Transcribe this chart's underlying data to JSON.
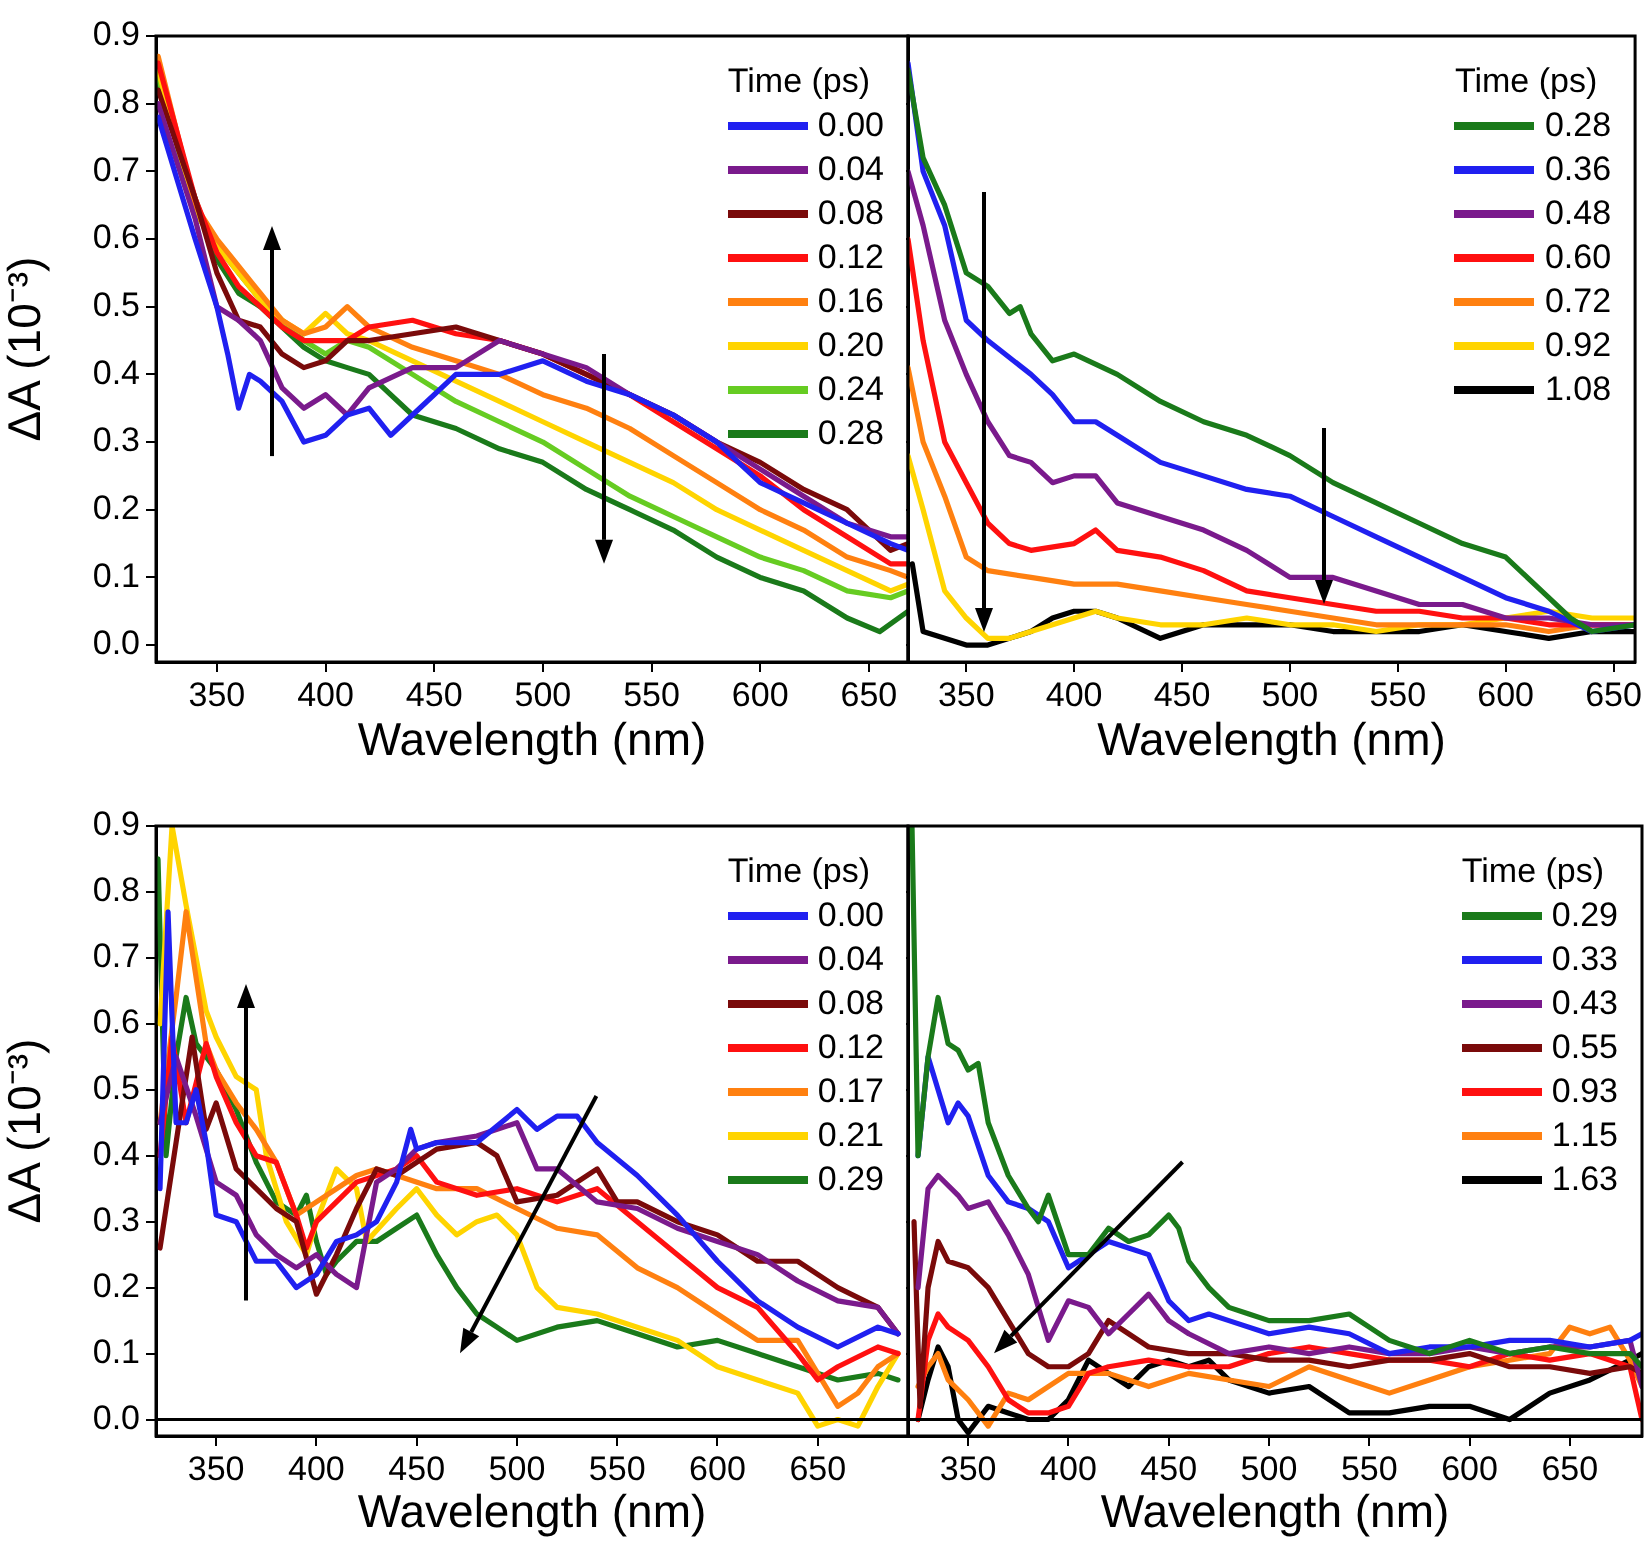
{
  "chart_data": [
    {
      "type": "line",
      "xlabel": "Wavelength (nm)",
      "ylabel": "ΔA (10⁻³)",
      "legend_title": "Time (ps)",
      "legend": "top right",
      "xlim": [
        322,
        668
      ],
      "ylim": [
        -0.025,
        0.9
      ],
      "xticks": [
        350,
        400,
        450,
        500,
        550,
        600,
        650
      ],
      "yticks": [
        {
          "value": 0,
          "label": "0.0"
        },
        0.1,
        0.2,
        0.3,
        0.4,
        0.5,
        0.6,
        0.7,
        0.8,
        0.9
      ],
      "series": [
        {
          "name": "0.00",
          "color": "#2020f0",
          "x": [
            323,
            340,
            350,
            355,
            360,
            365,
            370,
            380,
            390,
            400,
            410,
            420,
            430,
            440,
            460,
            480,
            500,
            520,
            540,
            560,
            580,
            600,
            620,
            640,
            660,
            668
          ],
          "values": [
            0.78,
            0.6,
            0.5,
            0.43,
            0.35,
            0.4,
            0.39,
            0.36,
            0.3,
            0.31,
            0.34,
            0.35,
            0.31,
            0.34,
            0.4,
            0.4,
            0.42,
            0.39,
            0.37,
            0.34,
            0.3,
            0.24,
            0.21,
            0.18,
            0.15,
            0.14
          ]
        },
        {
          "name": "0.04",
          "color": "#7a1a8c",
          "x": [
            323,
            340,
            350,
            360,
            370,
            380,
            390,
            400,
            410,
            420,
            440,
            460,
            480,
            500,
            520,
            540,
            560,
            580,
            600,
            620,
            640,
            660,
            668
          ],
          "values": [
            0.8,
            0.63,
            0.5,
            0.48,
            0.45,
            0.38,
            0.35,
            0.37,
            0.34,
            0.38,
            0.41,
            0.41,
            0.45,
            0.43,
            0.41,
            0.37,
            0.34,
            0.3,
            0.26,
            0.22,
            0.18,
            0.16,
            0.16
          ]
        },
        {
          "name": "0.08",
          "color": "#7a0a0a",
          "x": [
            323,
            340,
            350,
            360,
            370,
            380,
            390,
            400,
            410,
            420,
            440,
            460,
            480,
            500,
            520,
            540,
            560,
            580,
            600,
            620,
            640,
            660,
            668
          ],
          "values": [
            0.82,
            0.66,
            0.55,
            0.48,
            0.47,
            0.43,
            0.41,
            0.42,
            0.45,
            0.45,
            0.46,
            0.47,
            0.45,
            0.43,
            0.4,
            0.37,
            0.34,
            0.3,
            0.27,
            0.23,
            0.2,
            0.14,
            0.15
          ]
        },
        {
          "name": "0.12",
          "color": "#ff1010",
          "x": [
            323,
            340,
            350,
            360,
            370,
            380,
            390,
            400,
            410,
            420,
            440,
            460,
            480,
            500,
            520,
            540,
            560,
            580,
            600,
            620,
            640,
            660,
            668
          ],
          "values": [
            0.86,
            0.66,
            0.58,
            0.53,
            0.5,
            0.47,
            0.45,
            0.45,
            0.45,
            0.47,
            0.48,
            0.46,
            0.45,
            0.43,
            0.4,
            0.37,
            0.33,
            0.29,
            0.25,
            0.2,
            0.16,
            0.12,
            0.12
          ]
        },
        {
          "name": "0.16",
          "color": "#ff8010",
          "x": [
            323,
            340,
            350,
            360,
            370,
            380,
            390,
            400,
            410,
            420,
            440,
            460,
            480,
            500,
            520,
            540,
            560,
            580,
            600,
            620,
            640,
            660,
            668
          ],
          "values": [
            0.87,
            0.65,
            0.6,
            0.56,
            0.52,
            0.48,
            0.46,
            0.47,
            0.5,
            0.47,
            0.44,
            0.42,
            0.4,
            0.37,
            0.35,
            0.32,
            0.28,
            0.24,
            0.2,
            0.17,
            0.13,
            0.11,
            0.1
          ]
        },
        {
          "name": "0.20",
          "color": "#ffd400",
          "x": [
            323,
            340,
            350,
            360,
            370,
            380,
            390,
            400,
            410,
            420,
            440,
            460,
            480,
            500,
            520,
            540,
            560,
            580,
            600,
            620,
            640,
            660,
            668
          ],
          "values": [
            0.85,
            0.64,
            0.59,
            0.55,
            0.51,
            0.48,
            0.46,
            0.49,
            0.46,
            0.45,
            0.42,
            0.39,
            0.36,
            0.33,
            0.3,
            0.27,
            0.24,
            0.2,
            0.17,
            0.14,
            0.11,
            0.08,
            0.09
          ]
        },
        {
          "name": "0.24",
          "color": "#66cc22",
          "x": [
            323,
            340,
            350,
            360,
            370,
            380,
            390,
            400,
            410,
            420,
            440,
            460,
            480,
            500,
            520,
            540,
            560,
            580,
            600,
            620,
            640,
            660,
            668
          ],
          "values": [
            0.84,
            0.64,
            0.59,
            0.55,
            0.51,
            0.48,
            0.45,
            0.43,
            0.45,
            0.44,
            0.4,
            0.36,
            0.33,
            0.3,
            0.26,
            0.22,
            0.19,
            0.16,
            0.13,
            0.11,
            0.08,
            0.07,
            0.08
          ]
        },
        {
          "name": "0.28",
          "color": "#1a7a1a",
          "x": [
            323,
            340,
            350,
            360,
            370,
            380,
            390,
            400,
            410,
            420,
            440,
            460,
            480,
            500,
            520,
            540,
            560,
            580,
            600,
            620,
            640,
            655,
            668
          ],
          "values": [
            0.83,
            0.66,
            0.57,
            0.52,
            0.5,
            0.47,
            0.44,
            0.42,
            0.41,
            0.4,
            0.34,
            0.32,
            0.29,
            0.27,
            0.23,
            0.2,
            0.17,
            0.13,
            0.1,
            0.08,
            0.04,
            0.02,
            0.05
          ]
        }
      ]
    },
    {
      "type": "line",
      "xlabel": "Wavelength (nm)",
      "legend_title": "Time (ps)",
      "legend": "top right",
      "tick_labels": "x",
      "xlim": [
        323,
        660
      ],
      "ylim": [
        -0.025,
        0.9
      ],
      "xticks": [
        350,
        400,
        450,
        500,
        550,
        600,
        650
      ],
      "yticks": [
        0,
        0.1,
        0.2,
        0.3,
        0.4,
        0.5,
        0.6,
        0.7,
        0.8,
        0.9
      ],
      "series": [
        {
          "name": "0.28",
          "color": "#1a7a1a",
          "x": [
            323,
            330,
            340,
            350,
            360,
            370,
            375,
            380,
            390,
            400,
            420,
            440,
            460,
            480,
            500,
            520,
            540,
            560,
            580,
            600,
            620,
            630,
            640,
            660
          ],
          "values": [
            0.85,
            0.72,
            0.65,
            0.55,
            0.53,
            0.49,
            0.5,
            0.46,
            0.42,
            0.43,
            0.4,
            0.36,
            0.33,
            0.31,
            0.28,
            0.24,
            0.21,
            0.18,
            0.15,
            0.13,
            0.07,
            0.04,
            0.02,
            0.03
          ]
        },
        {
          "name": "0.36",
          "color": "#2020f0",
          "x": [
            323,
            330,
            340,
            350,
            360,
            380,
            390,
            400,
            410,
            420,
            440,
            460,
            480,
            500,
            520,
            540,
            560,
            580,
            600,
            620,
            640,
            660
          ],
          "values": [
            0.86,
            0.7,
            0.62,
            0.48,
            0.45,
            0.4,
            0.37,
            0.33,
            0.33,
            0.31,
            0.27,
            0.25,
            0.23,
            0.22,
            0.19,
            0.16,
            0.13,
            0.1,
            0.07,
            0.05,
            0.02,
            0.03
          ]
        },
        {
          "name": "0.48",
          "color": "#7a1a8c",
          "x": [
            323,
            330,
            340,
            350,
            360,
            370,
            380,
            390,
            400,
            410,
            420,
            440,
            460,
            480,
            500,
            520,
            540,
            560,
            580,
            600,
            620,
            640,
            660
          ],
          "values": [
            0.7,
            0.62,
            0.48,
            0.4,
            0.33,
            0.28,
            0.27,
            0.24,
            0.25,
            0.25,
            0.21,
            0.19,
            0.17,
            0.14,
            0.1,
            0.1,
            0.08,
            0.06,
            0.06,
            0.04,
            0.04,
            0.03,
            0.03
          ]
        },
        {
          "name": "0.60",
          "color": "#ff1010",
          "x": [
            323,
            330,
            340,
            350,
            360,
            370,
            380,
            400,
            410,
            420,
            440,
            460,
            480,
            500,
            520,
            540,
            560,
            580,
            600,
            620,
            640,
            660
          ],
          "values": [
            0.6,
            0.45,
            0.3,
            0.24,
            0.18,
            0.15,
            0.14,
            0.15,
            0.17,
            0.14,
            0.13,
            0.11,
            0.08,
            0.07,
            0.06,
            0.05,
            0.05,
            0.04,
            0.04,
            0.03,
            0.03,
            0.03
          ]
        },
        {
          "name": "0.72",
          "color": "#ff8010",
          "x": [
            323,
            330,
            340,
            350,
            360,
            380,
            400,
            420,
            440,
            460,
            480,
            500,
            520,
            540,
            560,
            580,
            600,
            620,
            640,
            660
          ],
          "values": [
            0.41,
            0.3,
            0.22,
            0.13,
            0.11,
            0.1,
            0.09,
            0.09,
            0.08,
            0.07,
            0.06,
            0.05,
            0.04,
            0.03,
            0.03,
            0.03,
            0.03,
            0.02,
            0.03,
            0.03
          ]
        },
        {
          "name": "0.92",
          "color": "#ffd400",
          "x": [
            323,
            330,
            340,
            350,
            360,
            370,
            380,
            400,
            410,
            420,
            440,
            460,
            480,
            500,
            520,
            540,
            560,
            580,
            600,
            620,
            640,
            660
          ],
          "values": [
            0.28,
            0.2,
            0.08,
            0.04,
            0.01,
            0.01,
            0.02,
            0.04,
            0.05,
            0.04,
            0.03,
            0.03,
            0.04,
            0.03,
            0.03,
            0.02,
            0.03,
            0.03,
            0.04,
            0.05,
            0.04,
            0.04
          ]
        },
        {
          "name": "1.08",
          "color": "#000000",
          "x": [
            325,
            330,
            340,
            350,
            360,
            380,
            390,
            400,
            410,
            420,
            440,
            460,
            480,
            500,
            520,
            540,
            560,
            580,
            600,
            620,
            640,
            660
          ],
          "values": [
            0.12,
            0.02,
            0.01,
            0,
            0,
            0.02,
            0.04,
            0.05,
            0.05,
            0.04,
            0.01,
            0.03,
            0.03,
            0.03,
            0.02,
            0.02,
            0.02,
            0.03,
            0.02,
            0.01,
            0.02,
            0.02
          ]
        }
      ]
    },
    {
      "type": "line",
      "xlabel": "Wavelength (nm)",
      "ylabel": "ΔA (10⁻³)",
      "legend_title": "Time (ps)",
      "legend": "top right",
      "xlim": [
        320,
        695
      ],
      "ylim": [
        -0.025,
        0.9
      ],
      "xticks": [
        350,
        400,
        450,
        500,
        550,
        600,
        650
      ],
      "yticks": [
        {
          "value": 0,
          "label": "0.0"
        },
        0.1,
        0.2,
        0.3,
        0.4,
        0.5,
        0.6,
        0.7,
        0.8,
        0.9
      ],
      "ref_lines": [
        {
          "axis": "y",
          "value": 0
        }
      ],
      "series": [
        {
          "name": "0.00",
          "color": "#2020f0",
          "x": [
            322,
            326,
            330,
            335,
            340,
            345,
            350,
            360,
            370,
            380,
            390,
            400,
            410,
            420,
            430,
            440,
            447,
            450,
            460,
            480,
            500,
            510,
            520,
            530,
            540,
            560,
            580,
            600,
            620,
            640,
            660,
            680,
            690
          ],
          "values": [
            0.35,
            0.77,
            0.45,
            0.45,
            0.5,
            0.42,
            0.31,
            0.3,
            0.24,
            0.24,
            0.2,
            0.22,
            0.27,
            0.28,
            0.3,
            0.36,
            0.44,
            0.41,
            0.42,
            0.42,
            0.47,
            0.44,
            0.46,
            0.46,
            0.42,
            0.37,
            0.31,
            0.24,
            0.18,
            0.14,
            0.11,
            0.14,
            0.13
          ]
        },
        {
          "name": "0.04",
          "color": "#7a1a8c",
          "x": [
            322,
            330,
            340,
            350,
            360,
            370,
            380,
            390,
            400,
            410,
            420,
            430,
            440,
            450,
            460,
            480,
            500,
            510,
            520,
            540,
            560,
            580,
            600,
            620,
            640,
            660,
            680,
            690
          ],
          "values": [
            0.45,
            0.55,
            0.46,
            0.36,
            0.34,
            0.28,
            0.25,
            0.23,
            0.25,
            0.22,
            0.2,
            0.36,
            0.38,
            0.41,
            0.42,
            0.43,
            0.45,
            0.38,
            0.38,
            0.33,
            0.32,
            0.29,
            0.27,
            0.25,
            0.21,
            0.18,
            0.17,
            0.13
          ]
        },
        {
          "name": "0.08",
          "color": "#7a0a0a",
          "x": [
            322,
            330,
            338,
            345,
            350,
            360,
            370,
            380,
            390,
            400,
            410,
            420,
            430,
            440,
            460,
            480,
            490,
            500,
            520,
            540,
            550,
            560,
            580,
            600,
            620,
            640,
            660,
            680,
            690
          ],
          "values": [
            0.26,
            0.42,
            0.58,
            0.44,
            0.48,
            0.38,
            0.35,
            0.32,
            0.3,
            0.19,
            0.25,
            0.32,
            0.38,
            0.37,
            0.41,
            0.42,
            0.4,
            0.33,
            0.34,
            0.38,
            0.33,
            0.33,
            0.3,
            0.28,
            0.24,
            0.24,
            0.2,
            0.17,
            0.13
          ]
        },
        {
          "name": "0.12",
          "color": "#ff1010",
          "x": [
            322,
            328,
            335,
            345,
            350,
            360,
            370,
            380,
            390,
            395,
            400,
            420,
            440,
            450,
            460,
            480,
            500,
            520,
            540,
            560,
            580,
            600,
            620,
            640,
            650,
            660,
            680,
            690
          ],
          "values": [
            0.4,
            0.58,
            0.45,
            0.57,
            0.52,
            0.45,
            0.4,
            0.39,
            0.31,
            0.26,
            0.3,
            0.36,
            0.38,
            0.4,
            0.36,
            0.34,
            0.35,
            0.33,
            0.35,
            0.3,
            0.25,
            0.2,
            0.17,
            0.1,
            0.06,
            0.08,
            0.11,
            0.1
          ]
        },
        {
          "name": "0.17",
          "color": "#ff8010",
          "x": [
            322,
            330,
            335,
            345,
            350,
            360,
            370,
            380,
            390,
            400,
            410,
            420,
            430,
            440,
            460,
            480,
            500,
            520,
            540,
            560,
            580,
            600,
            620,
            640,
            650,
            660,
            670,
            680,
            690
          ],
          "values": [
            0.45,
            0.64,
            0.77,
            0.57,
            0.53,
            0.48,
            0.44,
            0.39,
            0.31,
            0.33,
            0.35,
            0.37,
            0.38,
            0.37,
            0.35,
            0.35,
            0.32,
            0.29,
            0.28,
            0.23,
            0.2,
            0.16,
            0.12,
            0.12,
            0.07,
            0.02,
            0.04,
            0.08,
            0.1
          ]
        },
        {
          "name": "0.21",
          "color": "#ffd400",
          "x": [
            322,
            328,
            335,
            345,
            350,
            360,
            370,
            375,
            385,
            395,
            400,
            410,
            420,
            425,
            440,
            450,
            460,
            470,
            480,
            490,
            500,
            510,
            520,
            540,
            560,
            580,
            600,
            620,
            640,
            650,
            660,
            670,
            680,
            690
          ],
          "values": [
            0.6,
            0.9,
            0.78,
            0.62,
            0.58,
            0.52,
            0.5,
            0.4,
            0.3,
            0.25,
            0.3,
            0.38,
            0.35,
            0.27,
            0.32,
            0.35,
            0.31,
            0.28,
            0.3,
            0.31,
            0.28,
            0.2,
            0.17,
            0.16,
            0.14,
            0.12,
            0.08,
            0.06,
            0.04,
            -0.01,
            0,
            -0.01,
            0.05,
            0.1
          ]
        },
        {
          "name": "0.29",
          "color": "#1a7a1a",
          "x": [
            321,
            325,
            330,
            335,
            340,
            350,
            360,
            370,
            380,
            390,
            395,
            400,
            405,
            410,
            420,
            430,
            440,
            450,
            460,
            470,
            480,
            490,
            500,
            520,
            540,
            560,
            580,
            600,
            620,
            640,
            660,
            680,
            690
          ],
          "values": [
            0.85,
            0.4,
            0.55,
            0.64,
            0.57,
            0.53,
            0.47,
            0.39,
            0.33,
            0.31,
            0.34,
            0.27,
            0.22,
            0.24,
            0.27,
            0.27,
            0.29,
            0.31,
            0.25,
            0.2,
            0.16,
            0.14,
            0.12,
            0.14,
            0.15,
            0.13,
            0.11,
            0.12,
            0.1,
            0.08,
            0.06,
            0.07,
            0.06
          ]
        }
      ]
    },
    {
      "type": "line",
      "xlabel": "Wavelength (nm)",
      "legend_title": "Time (ps)",
      "legend": "top right",
      "tick_labels": "x",
      "xlim": [
        320,
        686
      ],
      "ylim": [
        -0.025,
        0.9
      ],
      "xticks": [
        350,
        400,
        450,
        500,
        550,
        600,
        650
      ],
      "yticks": [
        0,
        0.1,
        0.2,
        0.3,
        0.4,
        0.5,
        0.6,
        0.7,
        0.8,
        0.9
      ],
      "ref_lines": [
        {
          "axis": "y",
          "value": 0
        }
      ],
      "series": [
        {
          "name": "0.29",
          "color": "#1a7a1a",
          "x": [
            322,
            325,
            330,
            335,
            340,
            345,
            350,
            355,
            360,
            370,
            380,
            385,
            390,
            400,
            410,
            420,
            430,
            440,
            450,
            455,
            460,
            470,
            480,
            490,
            500,
            520,
            540,
            550,
            560,
            580,
            600,
            620,
            640,
            660,
            680,
            686
          ],
          "values": [
            0.9,
            0.4,
            0.55,
            0.64,
            0.57,
            0.56,
            0.53,
            0.54,
            0.45,
            0.37,
            0.32,
            0.3,
            0.34,
            0.25,
            0.25,
            0.29,
            0.27,
            0.28,
            0.31,
            0.29,
            0.24,
            0.2,
            0.17,
            0.16,
            0.15,
            0.15,
            0.16,
            0.14,
            0.12,
            0.1,
            0.12,
            0.1,
            0.11,
            0.1,
            0.1,
            0.08
          ]
        },
        {
          "name": "0.33",
          "color": "#2020f0",
          "x": [
            325,
            330,
            340,
            345,
            350,
            360,
            370,
            380,
            390,
            400,
            410,
            420,
            430,
            440,
            450,
            460,
            470,
            480,
            500,
            520,
            540,
            560,
            580,
            600,
            620,
            640,
            660,
            680,
            686
          ],
          "values": [
            0.4,
            0.55,
            0.45,
            0.48,
            0.46,
            0.37,
            0.33,
            0.32,
            0.3,
            0.23,
            0.25,
            0.27,
            0.26,
            0.25,
            0.18,
            0.15,
            0.16,
            0.15,
            0.13,
            0.14,
            0.13,
            0.1,
            0.11,
            0.11,
            0.12,
            0.12,
            0.11,
            0.12,
            0.13
          ]
        },
        {
          "name": "0.43",
          "color": "#7a1a8c",
          "x": [
            325,
            330,
            335,
            345,
            350,
            360,
            370,
            380,
            390,
            400,
            410,
            420,
            430,
            440,
            450,
            460,
            480,
            500,
            520,
            540,
            560,
            580,
            600,
            620,
            640,
            660,
            680,
            686
          ],
          "values": [
            0.2,
            0.35,
            0.37,
            0.34,
            0.32,
            0.33,
            0.28,
            0.22,
            0.12,
            0.18,
            0.17,
            0.13,
            0.16,
            0.19,
            0.15,
            0.13,
            0.1,
            0.11,
            0.1,
            0.11,
            0.1,
            0.1,
            0.11,
            0.1,
            0.11,
            0.11,
            0.12,
            0.05
          ]
        },
        {
          "name": "0.55",
          "color": "#7a0a0a",
          "x": [
            323,
            326,
            330,
            335,
            340,
            350,
            360,
            370,
            380,
            390,
            400,
            410,
            420,
            430,
            440,
            460,
            480,
            500,
            520,
            540,
            560,
            580,
            600,
            620,
            640,
            660,
            680,
            686
          ],
          "values": [
            0.3,
            0.02,
            0.2,
            0.27,
            0.24,
            0.23,
            0.2,
            0.15,
            0.1,
            0.08,
            0.08,
            0.1,
            0.15,
            0.13,
            0.11,
            0.1,
            0.1,
            0.09,
            0.09,
            0.08,
            0.09,
            0.09,
            0.1,
            0.08,
            0.08,
            0.07,
            0.08,
            0.07
          ]
        },
        {
          "name": "0.93",
          "color": "#ff1010",
          "x": [
            325,
            330,
            335,
            340,
            350,
            360,
            370,
            380,
            390,
            400,
            410,
            420,
            440,
            460,
            480,
            500,
            520,
            540,
            560,
            580,
            600,
            620,
            640,
            660,
            680,
            686
          ],
          "values": [
            0,
            0.12,
            0.16,
            0.14,
            0.12,
            0.08,
            0.03,
            0.01,
            0.01,
            0.02,
            0.07,
            0.08,
            0.09,
            0.08,
            0.08,
            0.1,
            0.11,
            0.1,
            0.09,
            0.09,
            0.08,
            0.1,
            0.09,
            0.1,
            0.08,
            0
          ]
        },
        {
          "name": "1.15",
          "color": "#ff8010",
          "x": [
            325,
            330,
            335,
            340,
            350,
            360,
            370,
            380,
            400,
            420,
            440,
            460,
            480,
            500,
            520,
            540,
            560,
            580,
            600,
            620,
            640,
            650,
            660,
            670,
            680,
            686
          ],
          "values": [
            0.05,
            0.08,
            0.1,
            0.06,
            0.03,
            -0.01,
            0.04,
            0.03,
            0.07,
            0.07,
            0.05,
            0.07,
            0.06,
            0.05,
            0.08,
            0.06,
            0.04,
            0.06,
            0.08,
            0.09,
            0.1,
            0.14,
            0.13,
            0.14,
            0.09,
            0.05
          ]
        },
        {
          "name": "1.63",
          "color": "#000000",
          "x": [
            325,
            330,
            335,
            340,
            345,
            350,
            360,
            370,
            380,
            390,
            400,
            410,
            420,
            430,
            440,
            450,
            460,
            470,
            480,
            500,
            520,
            540,
            560,
            580,
            600,
            620,
            640,
            660,
            680,
            686
          ],
          "values": [
            0,
            0.06,
            0.11,
            0.08,
            0,
            -0.02,
            0.02,
            0.01,
            0,
            0,
            0.03,
            0.09,
            0.07,
            0.05,
            0.08,
            0.09,
            0.08,
            0.09,
            0.06,
            0.04,
            0.05,
            0.01,
            0.01,
            0.02,
            0.02,
            0,
            0.04,
            0.06,
            0.09,
            0.1
          ]
        }
      ]
    }
  ]
}
